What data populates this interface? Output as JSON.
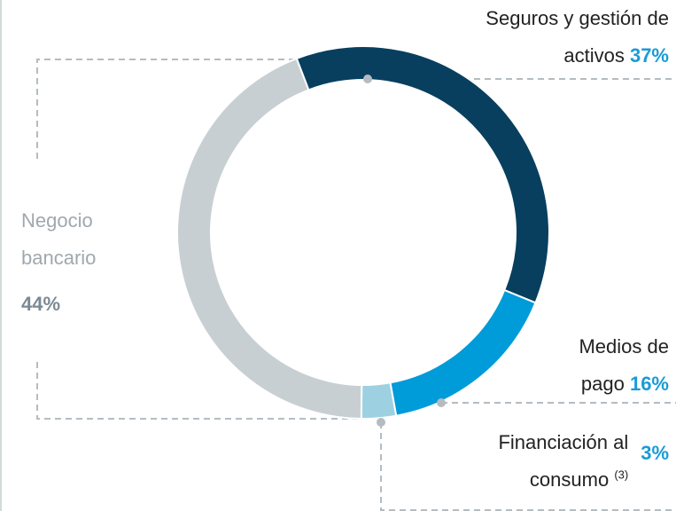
{
  "chart_data": {
    "type": "pie",
    "categories": [
      "Seguros y gestión de activos",
      "Medios de pago",
      "Financiación al consumo",
      "Negocio bancario"
    ],
    "values": [
      37,
      16,
      3,
      44
    ],
    "value_labels": [
      "37%",
      "16%",
      "3%",
      "44%"
    ],
    "category_notes": [
      null,
      null,
      "(3)",
      null
    ],
    "colors": [
      "#083f5f",
      "#009bd9",
      "#9dd1e2",
      "#c8cfd3"
    ]
  }
}
